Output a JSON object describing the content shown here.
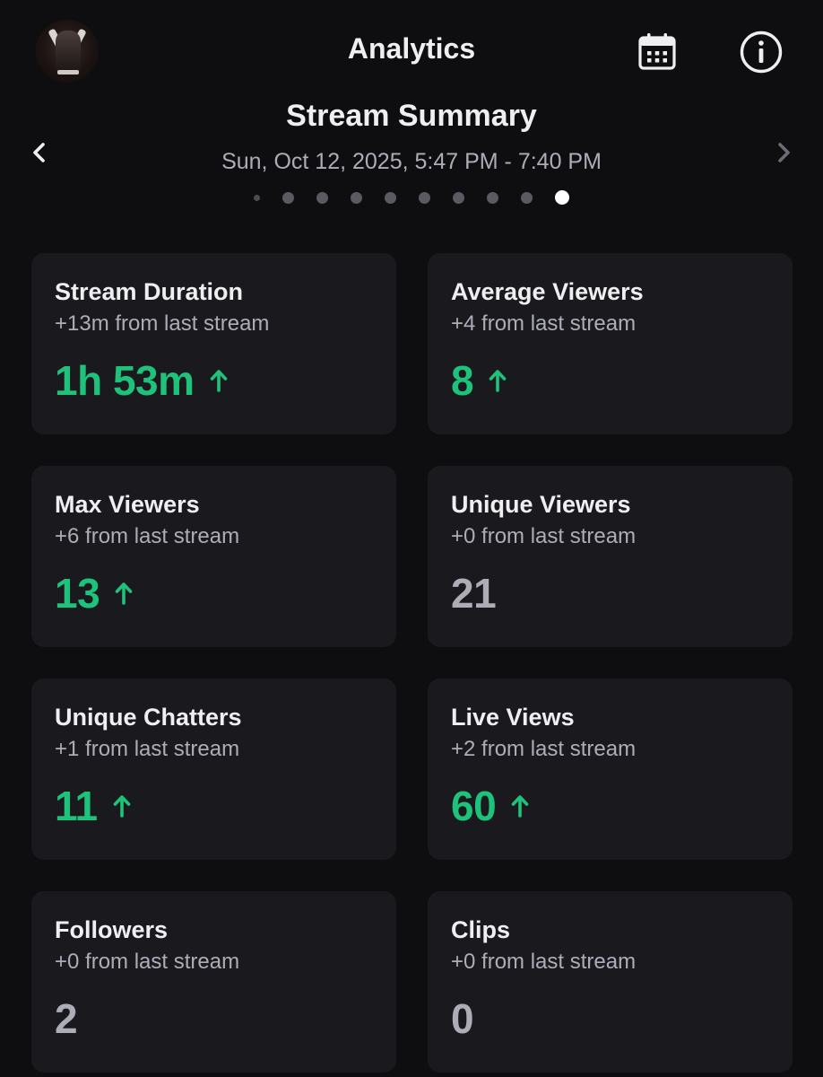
{
  "header": {
    "title": "Analytics"
  },
  "summary": {
    "title": "Stream Summary",
    "date_range": "Sun, Oct 12, 2025, 5:47 PM - 7:40 PM",
    "page_count": 10,
    "active_page": 10
  },
  "icons": {
    "calendar": "calendar-icon",
    "info": "info-icon",
    "prev": "chevron-left-icon",
    "next": "chevron-right-icon",
    "trend_up": "arrow-up-icon"
  },
  "colors": {
    "background": "#0e0e10",
    "card": "#1a1a1e",
    "positive": "#1ec27a",
    "neutral": "#adadb8"
  },
  "stats": [
    {
      "label": "Stream Duration",
      "delta": "+13m from last stream",
      "value": "1h 53m",
      "trend": "up"
    },
    {
      "label": "Average Viewers",
      "delta": "+4 from last stream",
      "value": "8",
      "trend": "up"
    },
    {
      "label": "Max Viewers",
      "delta": "+6 from last stream",
      "value": "13",
      "trend": "up"
    },
    {
      "label": "Unique Viewers",
      "delta": "+0 from last stream",
      "value": "21",
      "trend": "flat"
    },
    {
      "label": "Unique Chatters",
      "delta": "+1 from last stream",
      "value": "11",
      "trend": "up"
    },
    {
      "label": "Live Views",
      "delta": "+2 from last stream",
      "value": "60",
      "trend": "up"
    },
    {
      "label": "Followers",
      "delta": "+0 from last stream",
      "value": "2",
      "trend": "flat"
    },
    {
      "label": "Clips",
      "delta": "+0 from last stream",
      "value": "0",
      "trend": "flat"
    }
  ]
}
